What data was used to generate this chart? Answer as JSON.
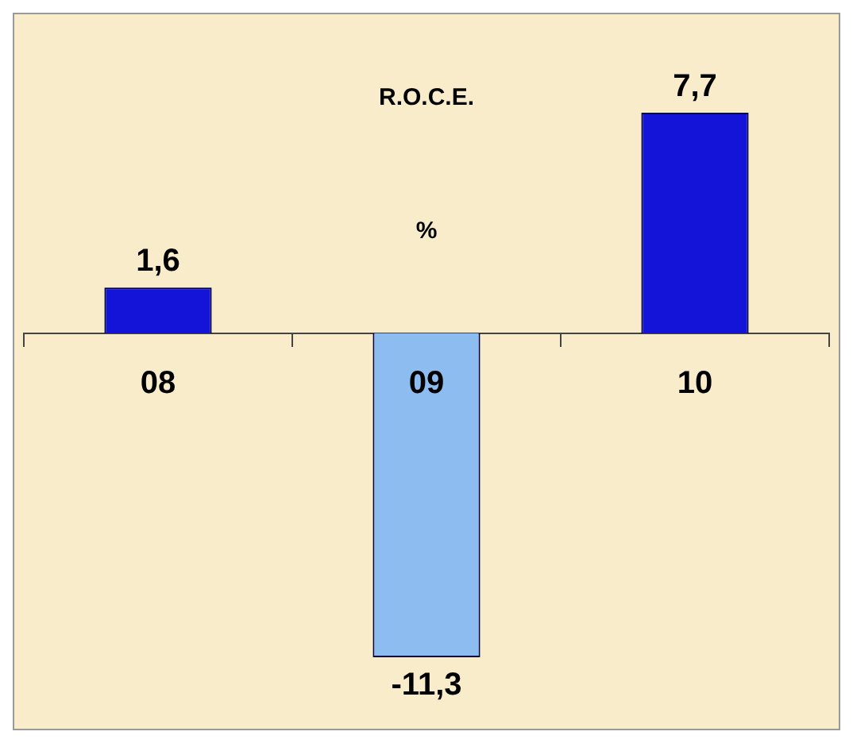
{
  "chart_data": {
    "type": "bar",
    "title": "R.O.C.E.",
    "annotations": [
      "%"
    ],
    "categories": [
      "08",
      "09",
      "10"
    ],
    "values": [
      1.6,
      -11.3,
      7.7
    ],
    "colors": [
      "#1414d8",
      "#8cbcf0",
      "#1414d8"
    ],
    "value_labels": [
      "1,6",
      "-11,3",
      "7,7"
    ],
    "legend": false,
    "grid": false
  }
}
